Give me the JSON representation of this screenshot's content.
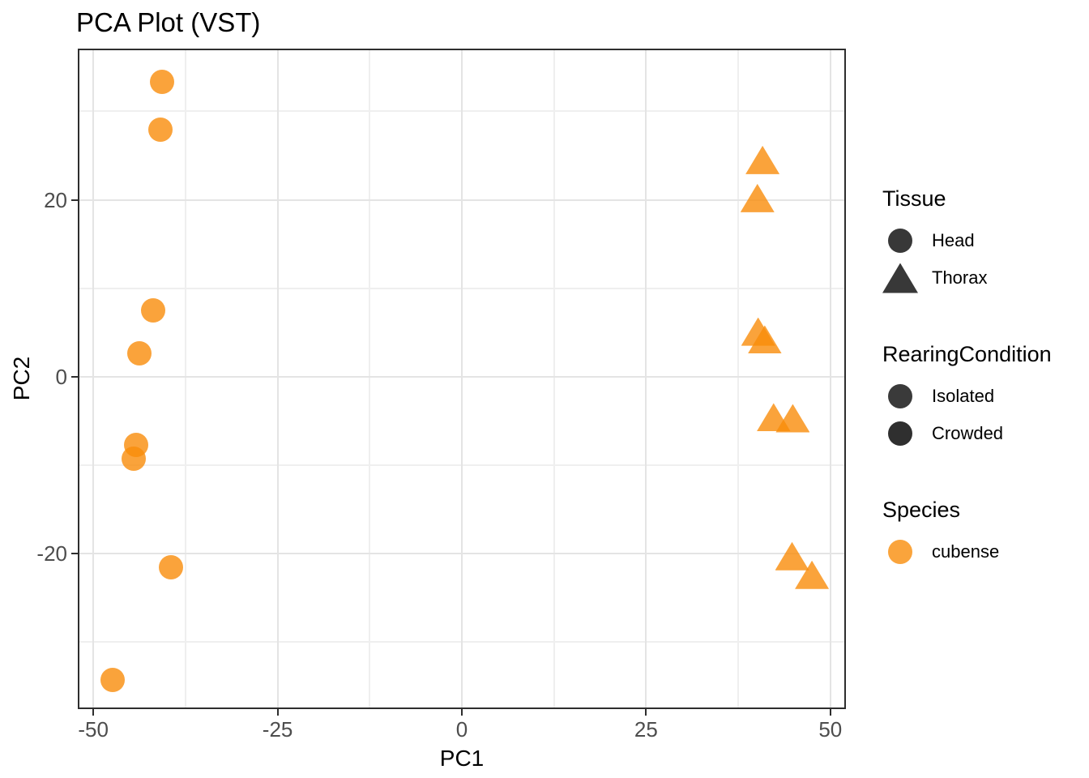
{
  "chart_data": {
    "type": "scatter",
    "title": "PCA Plot (VST)",
    "xlabel": "PC1",
    "ylabel": "PC2",
    "x_domain": [
      -52,
      52
    ],
    "y_domain": [
      -37.5,
      37
    ],
    "x_major_ticks": [
      -50,
      -25,
      0,
      25,
      50
    ],
    "x_tick_labels": [
      "-50",
      "-25",
      "0",
      "25",
      "50"
    ],
    "y_major_ticks": [
      20,
      0,
      -20
    ],
    "y_tick_labels": [
      "20",
      "0",
      "-20"
    ],
    "x_minor_ticks": [
      -37.5,
      -12.5,
      12.5,
      37.5
    ],
    "y_minor_ticks": [
      30,
      10,
      -10,
      -30
    ],
    "grid": "on",
    "legend_position": "right",
    "point_color": "#F98C0A",
    "point_alpha": 0.8,
    "series": [
      {
        "name": "Head",
        "shape": "circle",
        "points": [
          [
            -40.7,
            33.3
          ],
          [
            -40.9,
            27.9
          ],
          [
            -41.9,
            7.5
          ],
          [
            -43.8,
            2.6
          ],
          [
            -44.2,
            -7.7
          ],
          [
            -44.5,
            -9.3
          ],
          [
            -39.5,
            -21.6
          ],
          [
            -47.4,
            -34.3
          ]
        ]
      },
      {
        "name": "Thorax",
        "shape": "triangle",
        "points": [
          [
            40.8,
            24.5
          ],
          [
            40.1,
            20.2
          ],
          [
            40.2,
            5.1
          ],
          [
            41.1,
            4.2
          ],
          [
            42.3,
            -4.6
          ],
          [
            44.9,
            -4.7
          ],
          [
            44.8,
            -20.3
          ],
          [
            47.5,
            -22.4
          ]
        ]
      }
    ]
  },
  "legend": {
    "groups": [
      {
        "title": "Tissue",
        "items": [
          {
            "label": "Head",
            "shape": "circle",
            "color": "#383838"
          },
          {
            "label": "Thorax",
            "shape": "triangle",
            "color": "#383838"
          }
        ]
      },
      {
        "title": "RearingCondition",
        "items": [
          {
            "label": "Isolated",
            "shape": "circle",
            "color": "#3a3a3a"
          },
          {
            "label": "Crowded",
            "shape": "circle",
            "color": "#2f2f2f"
          }
        ]
      },
      {
        "title": "Species",
        "items": [
          {
            "label": "cubense",
            "shape": "circle",
            "color": "#FAA43C"
          }
        ]
      }
    ]
  },
  "colors": {
    "accent_orange": "#FAA43C",
    "grid_major": "#e4e4e4",
    "grid_minor": "#efefef",
    "axis_text": "#4d4d4d",
    "panel_border": "#2e2e2e"
  }
}
